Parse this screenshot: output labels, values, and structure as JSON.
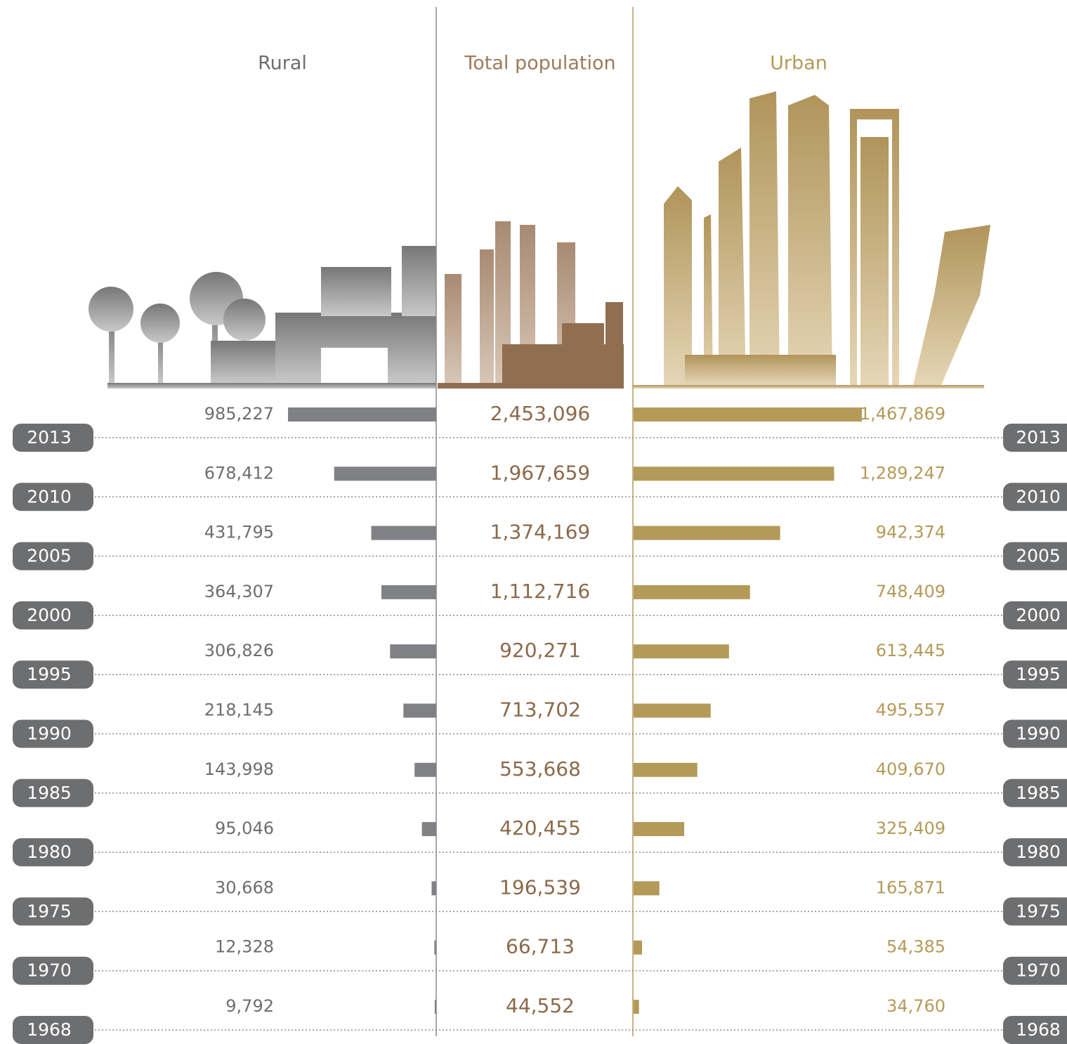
{
  "chart_data": {
    "type": "bar",
    "categories": [
      "2013",
      "2010",
      "2005",
      "2000",
      "1995",
      "1990",
      "1985",
      "1980",
      "1975",
      "1970",
      "1968"
    ],
    "series": [
      {
        "name": "Rural",
        "color": "#808184",
        "values": [
          985227,
          678412,
          431795,
          364307,
          306826,
          218145,
          143998,
          95046,
          30668,
          12328,
          9792
        ],
        "value_labels": [
          "985,227",
          "678,412",
          "431,795",
          "364,307",
          "306,826",
          "218,145",
          "143,998",
          "95,046",
          "30,668",
          "12,328",
          "9,792"
        ]
      },
      {
        "name": "Total population",
        "color": "#9c7b5b",
        "values": [
          2453096,
          1967659,
          1374169,
          1112716,
          920271,
          713702,
          553668,
          420455,
          196539,
          66713,
          44552
        ],
        "value_labels": [
          "2,453,096",
          "1,967,659",
          "1,374,169",
          "1,112,716",
          "920,271",
          "713,702",
          "553,668",
          "420,455",
          "196,539",
          "66,713",
          "44,552"
        ]
      },
      {
        "name": "Urban",
        "color": "#b39a58",
        "values": [
          1467869,
          1289247,
          942374,
          748409,
          613445,
          495557,
          409670,
          325409,
          165871,
          54385,
          34760
        ],
        "value_labels": [
          "1,467,869",
          "1,289,247",
          "942,374",
          "748,409",
          "613,445",
          "495,557",
          "409,670",
          "325,409",
          "165,871",
          "54,385",
          "34,760"
        ]
      }
    ]
  }
}
